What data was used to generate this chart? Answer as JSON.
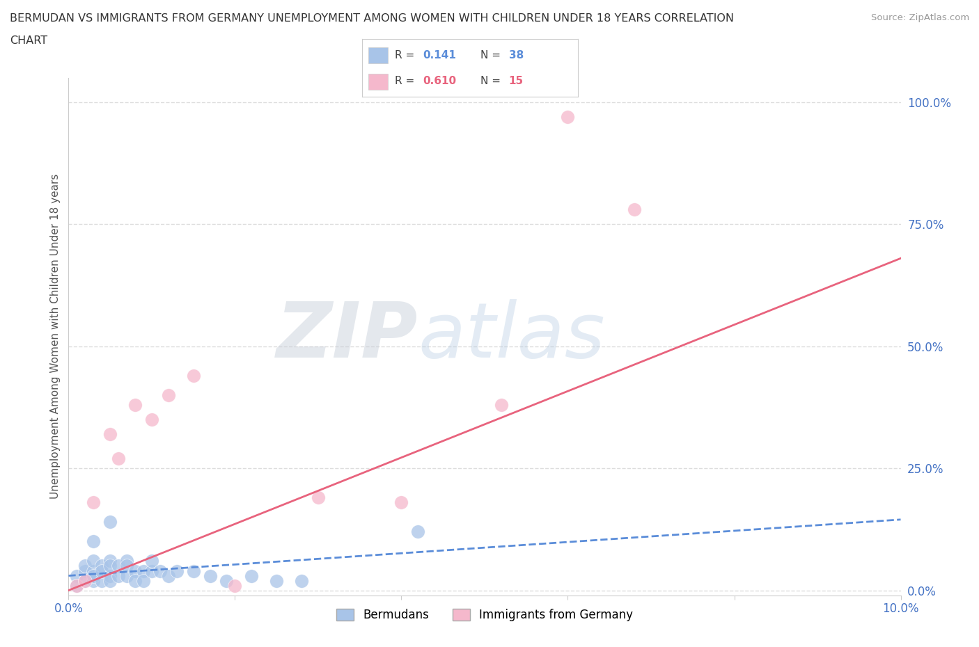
{
  "title_line1": "BERMUDAN VS IMMIGRANTS FROM GERMANY UNEMPLOYMENT AMONG WOMEN WITH CHILDREN UNDER 18 YEARS CORRELATION",
  "title_line2": "CHART",
  "source_text": "Source: ZipAtlas.com",
  "ylabel": "Unemployment Among Women with Children Under 18 years",
  "xlim": [
    0.0,
    0.1
  ],
  "ylim": [
    -0.01,
    1.05
  ],
  "yticks": [
    0.0,
    0.25,
    0.5,
    0.75,
    1.0
  ],
  "yticklabels": [
    "0.0%",
    "25.0%",
    "50.0%",
    "75.0%",
    "100.0%"
  ],
  "xtick_positions": [
    0.0,
    0.02,
    0.04,
    0.06,
    0.08,
    0.1
  ],
  "blue_color": "#a8c4e8",
  "pink_color": "#f5b8cc",
  "blue_line_color": "#5b8dd9",
  "pink_line_color": "#e8637d",
  "watermark_zip": "#c8d0dc",
  "watermark_atlas": "#b8cce0",
  "background_color": "#ffffff",
  "grid_color": "#dddddd",
  "bermudans_x": [
    0.001,
    0.001,
    0.002,
    0.002,
    0.002,
    0.003,
    0.003,
    0.003,
    0.003,
    0.004,
    0.004,
    0.004,
    0.005,
    0.005,
    0.005,
    0.005,
    0.006,
    0.006,
    0.007,
    0.007,
    0.007,
    0.008,
    0.008,
    0.009,
    0.009,
    0.01,
    0.01,
    0.011,
    0.012,
    0.013,
    0.015,
    0.017,
    0.019,
    0.022,
    0.025,
    0.028,
    0.042,
    0.005,
    0.003
  ],
  "bermudans_y": [
    0.03,
    0.01,
    0.04,
    0.02,
    0.05,
    0.04,
    0.02,
    0.06,
    0.03,
    0.05,
    0.02,
    0.04,
    0.06,
    0.03,
    0.05,
    0.02,
    0.05,
    0.03,
    0.06,
    0.03,
    0.05,
    0.04,
    0.02,
    0.04,
    0.02,
    0.04,
    0.06,
    0.04,
    0.03,
    0.04,
    0.04,
    0.03,
    0.02,
    0.03,
    0.02,
    0.02,
    0.12,
    0.14,
    0.1
  ],
  "germany_x": [
    0.001,
    0.002,
    0.003,
    0.005,
    0.006,
    0.008,
    0.01,
    0.012,
    0.015,
    0.02,
    0.03,
    0.04,
    0.052,
    0.06,
    0.068
  ],
  "germany_y": [
    0.01,
    0.02,
    0.18,
    0.32,
    0.27,
    0.38,
    0.35,
    0.4,
    0.44,
    0.01,
    0.19,
    0.18,
    0.38,
    0.97,
    0.78
  ],
  "blue_trend_x0": 0.0,
  "blue_trend_y0": 0.03,
  "blue_trend_x1": 0.1,
  "blue_trend_y1": 0.145,
  "pink_trend_x0": 0.0,
  "pink_trend_y0": 0.0,
  "pink_trend_x1": 0.1,
  "pink_trend_y1": 0.68
}
